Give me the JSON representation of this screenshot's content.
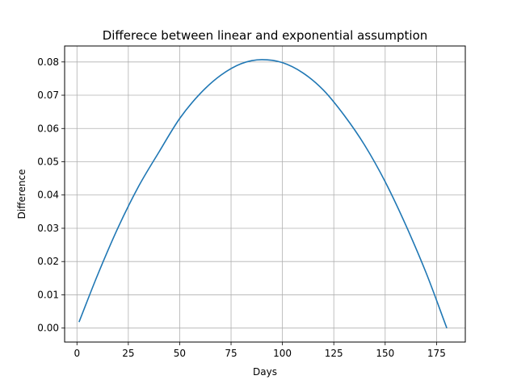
{
  "chart_data": {
    "type": "line",
    "title": "Differece between linear and exponential assumption",
    "xlabel": "Days",
    "ylabel": "Difference",
    "xlim": [
      -6,
      189
    ],
    "ylim": [
      -0.0042,
      0.0848
    ],
    "grid": true,
    "x_ticks": [
      {
        "value": 0,
        "label": "0"
      },
      {
        "value": 25,
        "label": "25"
      },
      {
        "value": 50,
        "label": "50"
      },
      {
        "value": 75,
        "label": "75"
      },
      {
        "value": 100,
        "label": "100"
      },
      {
        "value": 125,
        "label": "125"
      },
      {
        "value": 150,
        "label": "150"
      },
      {
        "value": 175,
        "label": "175"
      }
    ],
    "y_ticks": [
      {
        "value": 0.0,
        "label": "0.00"
      },
      {
        "value": 0.01,
        "label": "0.01"
      },
      {
        "value": 0.02,
        "label": "0.02"
      },
      {
        "value": 0.03,
        "label": "0.03"
      },
      {
        "value": 0.04,
        "label": "0.04"
      },
      {
        "value": 0.05,
        "label": "0.05"
      },
      {
        "value": 0.06,
        "label": "0.06"
      },
      {
        "value": 0.07,
        "label": "0.07"
      },
      {
        "value": 0.08,
        "label": "0.08"
      }
    ],
    "series": [
      {
        "color": "#1f77b4",
        "x": [
          1,
          10,
          20,
          30,
          40,
          50,
          60,
          70,
          80,
          90,
          100,
          110,
          120,
          130,
          140,
          150,
          160,
          170,
          180
        ],
        "y": [
          0.0018,
          0.0159,
          0.0302,
          0.0426,
          0.053,
          0.063,
          0.0705,
          0.076,
          0.0795,
          0.0807,
          0.0798,
          0.0767,
          0.0715,
          0.064,
          0.055,
          0.044,
          0.031,
          0.0165,
          0.0
        ]
      }
    ]
  }
}
